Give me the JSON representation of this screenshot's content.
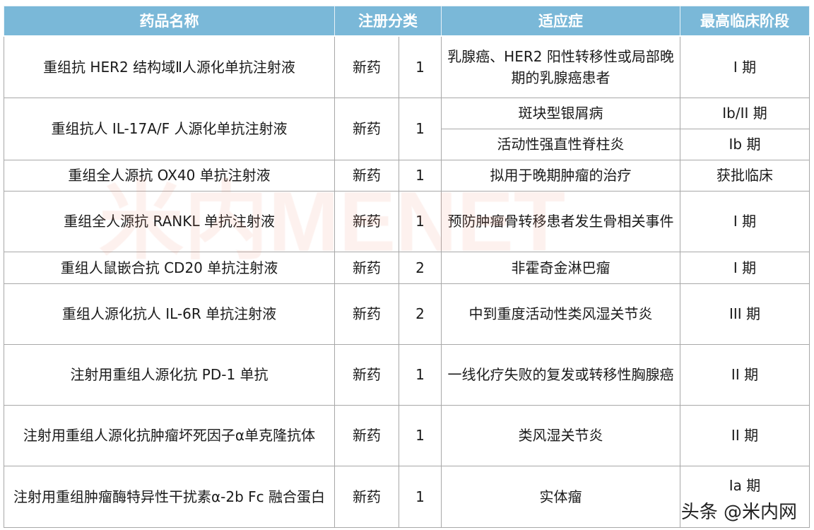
{
  "headers": {
    "name": "药品名称",
    "category": "注册分类",
    "indication": "适应症",
    "phase": "最高临床阶段"
  },
  "rows": [
    {
      "name": "重组抗 HER2 结构域Ⅱ人源化单抗注射液",
      "type": "新药",
      "class": "1",
      "indications": [
        "乳腺癌、HER2 阳性转移性或局部晚期的乳腺癌患者"
      ],
      "phases": [
        "I 期"
      ]
    },
    {
      "name": "重组抗人 IL-17A/F 人源化单抗注射液",
      "type": "新药",
      "class": "1",
      "indications": [
        "斑块型银屑病",
        "活动性强直性脊柱炎"
      ],
      "phases": [
        "Ib/II 期",
        "Ib 期"
      ]
    },
    {
      "name": "重组全人源抗 OX40 单抗注射液",
      "type": "新药",
      "class": "1",
      "indications": [
        "拟用于晚期肿瘤的治疗"
      ],
      "phases": [
        "获批临床"
      ]
    },
    {
      "name": "重组全人源抗 RANKL 单抗注射液",
      "type": "新药",
      "class": "1",
      "indications": [
        "预防肿瘤骨转移患者发生骨相关事件"
      ],
      "phases": [
        "I 期"
      ]
    },
    {
      "name": "重组人鼠嵌合抗 CD20 单抗注射液",
      "type": "新药",
      "class": "2",
      "indications": [
        "非霍奇金淋巴瘤"
      ],
      "phases": [
        "I 期"
      ]
    },
    {
      "name": "重组人源化抗人 IL-6R 单抗注射液",
      "type": "新药",
      "class": "2",
      "indications": [
        "中到重度活动性类风湿关节炎"
      ],
      "phases": [
        "III 期"
      ]
    },
    {
      "name": "注射用重组人源化抗 PD-1 单抗",
      "type": "新药",
      "class": "1",
      "indications": [
        "一线化疗失败的复发或转移性胸腺癌"
      ],
      "phases": [
        "II 期"
      ]
    },
    {
      "name": "注射用重组人源化抗肿瘤坏死因子α单克隆抗体",
      "type": "新药",
      "class": "1",
      "indications": [
        "类风湿关节炎"
      ],
      "phases": [
        "II 期"
      ]
    },
    {
      "name": "注射用重组肿瘤酶特异性干扰素α-2b Fc 融合蛋白",
      "type": "新药",
      "class": "1",
      "indications": [
        "实体瘤"
      ],
      "phases": [
        "Ia 期"
      ]
    }
  ],
  "watermark": "米内MENET",
  "source_watermark": "头条 @米内网",
  "colors": {
    "header_bg": "#7ab8d8",
    "header_text": "#ffffff",
    "border": "#a8a8a8"
  }
}
